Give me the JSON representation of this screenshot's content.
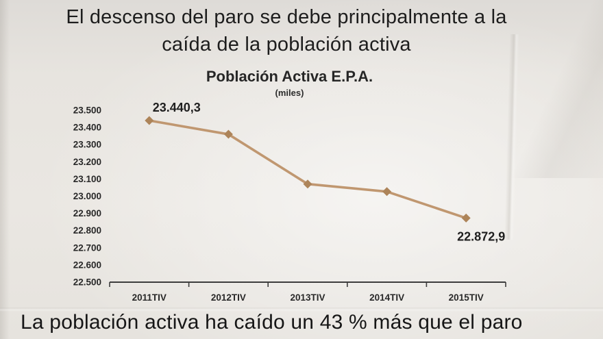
{
  "page": {
    "title_line1": "El descenso del paro se debe principalmente a la",
    "title_line2": "caída de la población activa",
    "footer_text": "La población activa ha caído un 43 % más que el paro"
  },
  "chart": {
    "title": "Población Activa E.P.A.",
    "subtitle": "(miles)"
  },
  "chart_data": {
    "type": "line",
    "title": "Población Activa E.P.A.",
    "subtitle": "(miles)",
    "categories": [
      "2011TIV",
      "2012TIV",
      "2013TIV",
      "2014TIV",
      "2015TIV"
    ],
    "series": [
      {
        "name": "Población Activa (miles)",
        "values": [
          23440.3,
          23360.4,
          23070.9,
          23026.8,
          22872.9
        ]
      }
    ],
    "point_labels": [
      {
        "index": 0,
        "text": "23.440,3",
        "position": "above"
      },
      {
        "index": 4,
        "text": "22.872,9",
        "position": "below"
      }
    ],
    "ylim": [
      22500,
      23500
    ],
    "ytick_step": 100,
    "ytick_labels": [
      "23.500",
      "23.400",
      "23.300",
      "23.200",
      "23.100",
      "23.000",
      "22.900",
      "22.800",
      "22.700",
      "22.600",
      "22.500"
    ],
    "grid": false,
    "legend": "none",
    "marker": "diamond",
    "line_color": "#c09770",
    "marker_color": "#ad8459",
    "axis_color": "#3c3c3c"
  }
}
